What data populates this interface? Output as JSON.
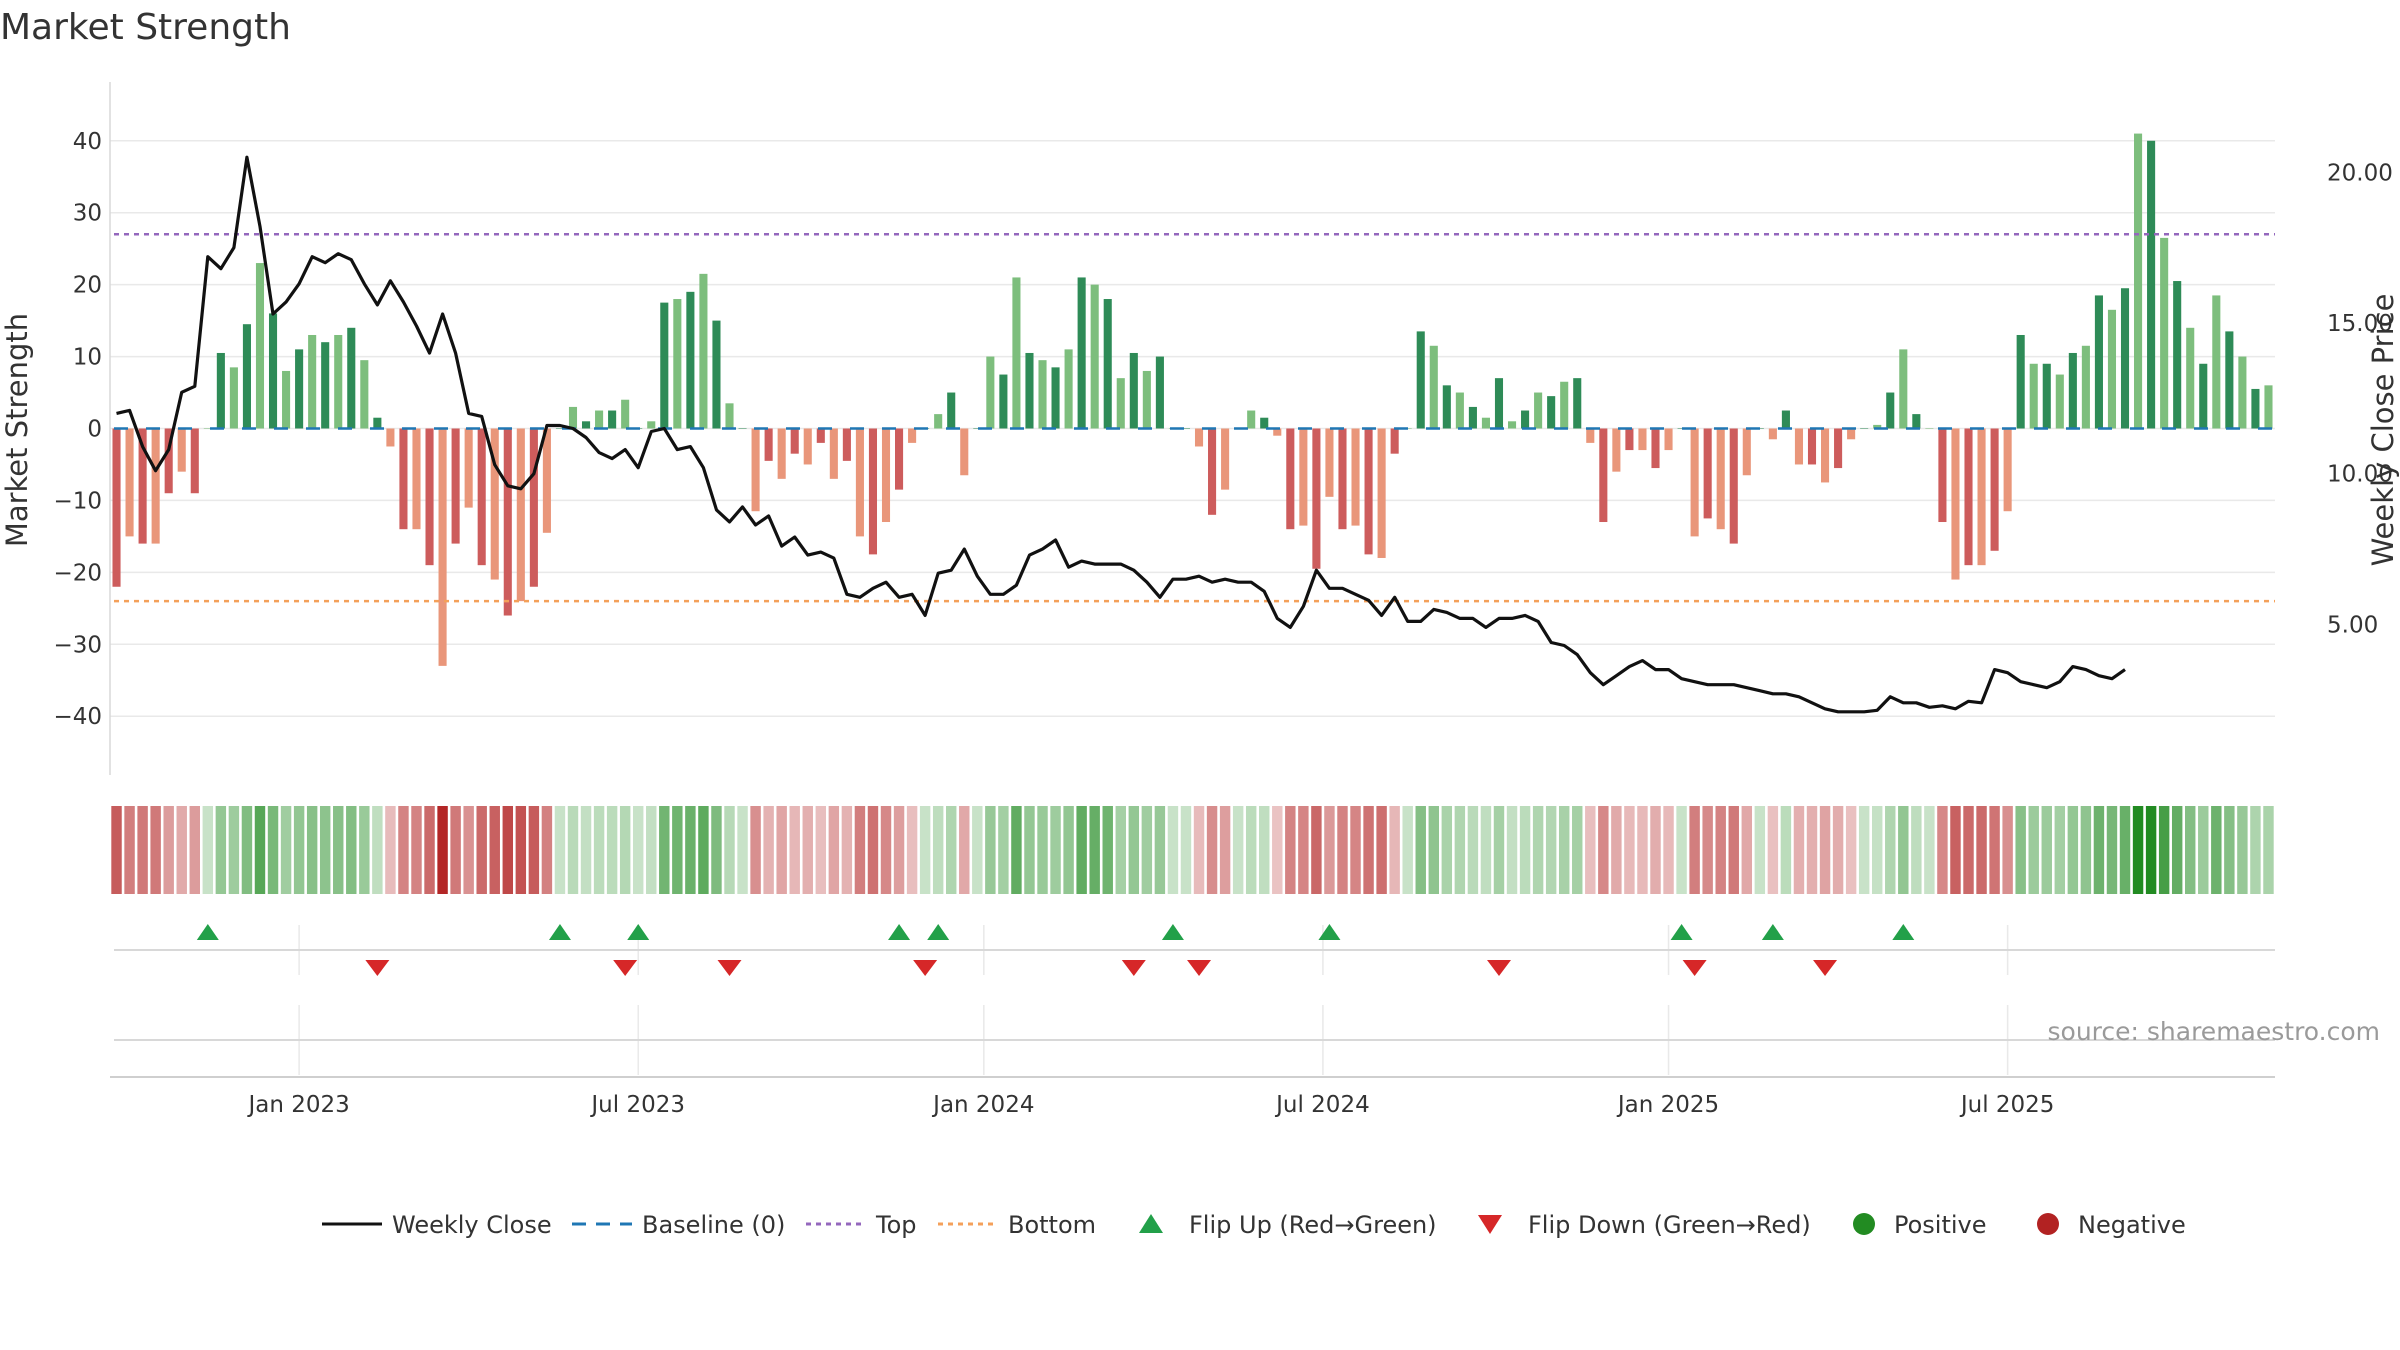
{
  "chart_data": {
    "type": "bar",
    "title": "Market Strength",
    "source_text": "source: sharemaestro.com",
    "y_left": {
      "label": "Market Strength",
      "range": [
        -44,
        44
      ],
      "ticks": [
        40,
        30,
        20,
        10,
        0,
        -10,
        -20,
        -30,
        -40
      ]
    },
    "y_right": {
      "label": "Weekly Close Price",
      "range": [
        1.0,
        22.0
      ],
      "ticks": [
        "20.00",
        "15.00",
        "10.00",
        "5.00"
      ]
    },
    "x_ticks": [
      "Jan 2023",
      "Jul 2023",
      "Jan 2024",
      "Jul 2024",
      "Jan 2025",
      "Jul 2025"
    ],
    "x_tick_weeks": [
      14.5,
      40.5,
      67.0,
      93.0,
      119.5,
      145.5
    ],
    "top_level": 27,
    "bottom_level": -24,
    "strength": [
      -22,
      -15,
      -16,
      -16,
      -9,
      -6,
      -9,
      0,
      10.5,
      8.5,
      14.5,
      23,
      16,
      8,
      11,
      13,
      12,
      13,
      14,
      9.5,
      1.5,
      -2.5,
      -14,
      -14,
      -19,
      -33,
      -16,
      -11,
      -19,
      -21,
      -26,
      -24,
      -22,
      -14.5,
      0,
      3,
      1,
      2.5,
      2.5,
      4,
      0,
      1,
      17.5,
      18,
      19,
      21.5,
      15,
      3.5,
      0,
      -11.5,
      -4.5,
      -7,
      -3.5,
      -5,
      -2,
      -7,
      -4.5,
      -15,
      -17.5,
      -13,
      -8.5,
      -2,
      0,
      2,
      5,
      -6.5,
      0,
      10,
      7.5,
      21,
      10.5,
      9.5,
      8.5,
      11,
      21,
      20,
      18,
      7,
      10.5,
      8,
      10,
      0,
      0,
      -2.5,
      -12,
      -8.5,
      0,
      2.5,
      1.5,
      -1,
      -14,
      -13.5,
      -19.5,
      -9.5,
      -14,
      -13.5,
      -17.5,
      -18,
      -3.5,
      0,
      13.5,
      11.5,
      6,
      5,
      3,
      1.5,
      7,
      1,
      2.5,
      5,
      4.5,
      6.5,
      7,
      -2,
      -13,
      -6,
      -3,
      -3,
      -5.5,
      -3,
      0,
      -15,
      -12.5,
      -14,
      -16,
      -6.5,
      0,
      -1.5,
      2.5,
      -5,
      -5,
      -7.5,
      -5.5,
      -1.5,
      0,
      0.5,
      5,
      11,
      2,
      0,
      -13,
      -21,
      -19,
      -19,
      -17,
      -11.5,
      13,
      9,
      9,
      7.5,
      10.5,
      11.5,
      18.5,
      16.5,
      19.5,
      41,
      40,
      26.5,
      20.5,
      14,
      9,
      18.5,
      13.5,
      10,
      5.5,
      6
    ],
    "price": [
      12.0,
      12.1,
      10.9,
      10.1,
      10.8,
      12.7,
      12.9,
      17.2,
      16.8,
      17.5,
      20.5,
      18.2,
      15.3,
      15.7,
      16.3,
      17.2,
      17.0,
      17.3,
      17.1,
      16.3,
      15.6,
      16.4,
      15.7,
      14.9,
      14.0,
      15.3,
      14.0,
      12.0,
      11.9,
      10.3,
      9.6,
      9.5,
      10.0,
      11.6,
      11.6,
      11.5,
      11.2,
      10.7,
      10.5,
      10.8,
      10.2,
      11.4,
      11.5,
      10.8,
      10.9,
      10.2,
      8.8,
      8.4,
      8.9,
      8.3,
      8.6,
      7.6,
      7.9,
      7.3,
      7.4,
      7.2,
      6.0,
      5.9,
      6.2,
      6.4,
      5.9,
      6.0,
      5.3,
      6.7,
      6.8,
      7.5,
      6.6,
      6.0,
      6.0,
      6.3,
      7.3,
      7.5,
      7.8,
      6.9,
      7.1,
      7.0,
      7.0,
      7.0,
      6.8,
      6.4,
      5.9,
      6.5,
      6.5,
      6.6,
      6.4,
      6.5,
      6.4,
      6.4,
      6.1,
      5.2,
      4.9,
      5.6,
      6.8,
      6.2,
      6.2,
      6.0,
      5.8,
      5.3,
      5.9,
      5.1,
      5.1,
      5.5,
      5.4,
      5.2,
      5.2,
      4.9,
      5.2,
      5.2,
      5.3,
      5.1,
      4.4,
      4.3,
      4.0,
      3.4,
      3.0,
      3.3,
      3.6,
      3.8,
      3.5,
      3.5,
      3.2,
      3.1,
      3.0,
      3.0,
      3.0,
      2.9,
      2.8,
      2.7,
      2.7,
      2.6,
      2.4,
      2.2,
      2.1,
      2.1,
      2.1,
      2.15,
      2.6,
      2.4,
      2.4,
      2.25,
      2.3,
      2.2,
      2.45,
      2.4,
      3.5,
      3.4,
      3.1,
      3.0,
      2.9,
      3.1,
      3.6,
      3.5,
      3.3,
      3.2,
      3.5
    ],
    "flip_up_weeks": [
      7,
      34,
      40,
      60,
      63,
      81,
      93,
      120,
      127,
      137
    ],
    "flip_down_weeks": [
      20,
      39,
      47,
      62,
      78,
      83,
      106,
      121,
      131
    ],
    "colors": {
      "green_strong": "#2e8b57",
      "green_light": "#7dbe7d",
      "red_strong": "#cd5c5c",
      "red_light": "#e9967a",
      "price_line": "#111111",
      "baseline": "#1f77b4",
      "top_line": "#9467bd",
      "bottom_line": "#f4a05a",
      "flip_up": "#22a049",
      "flip_down": "#d62728",
      "positive": "#228b22",
      "negative": "#b22222"
    },
    "legend": [
      "Weekly Close",
      "Baseline (0)",
      "Top",
      "Bottom",
      "Flip Up (Red→Green)",
      "Flip Down (Green→Red)",
      "Positive",
      "Negative"
    ],
    "legend_placement": "bottom"
  }
}
